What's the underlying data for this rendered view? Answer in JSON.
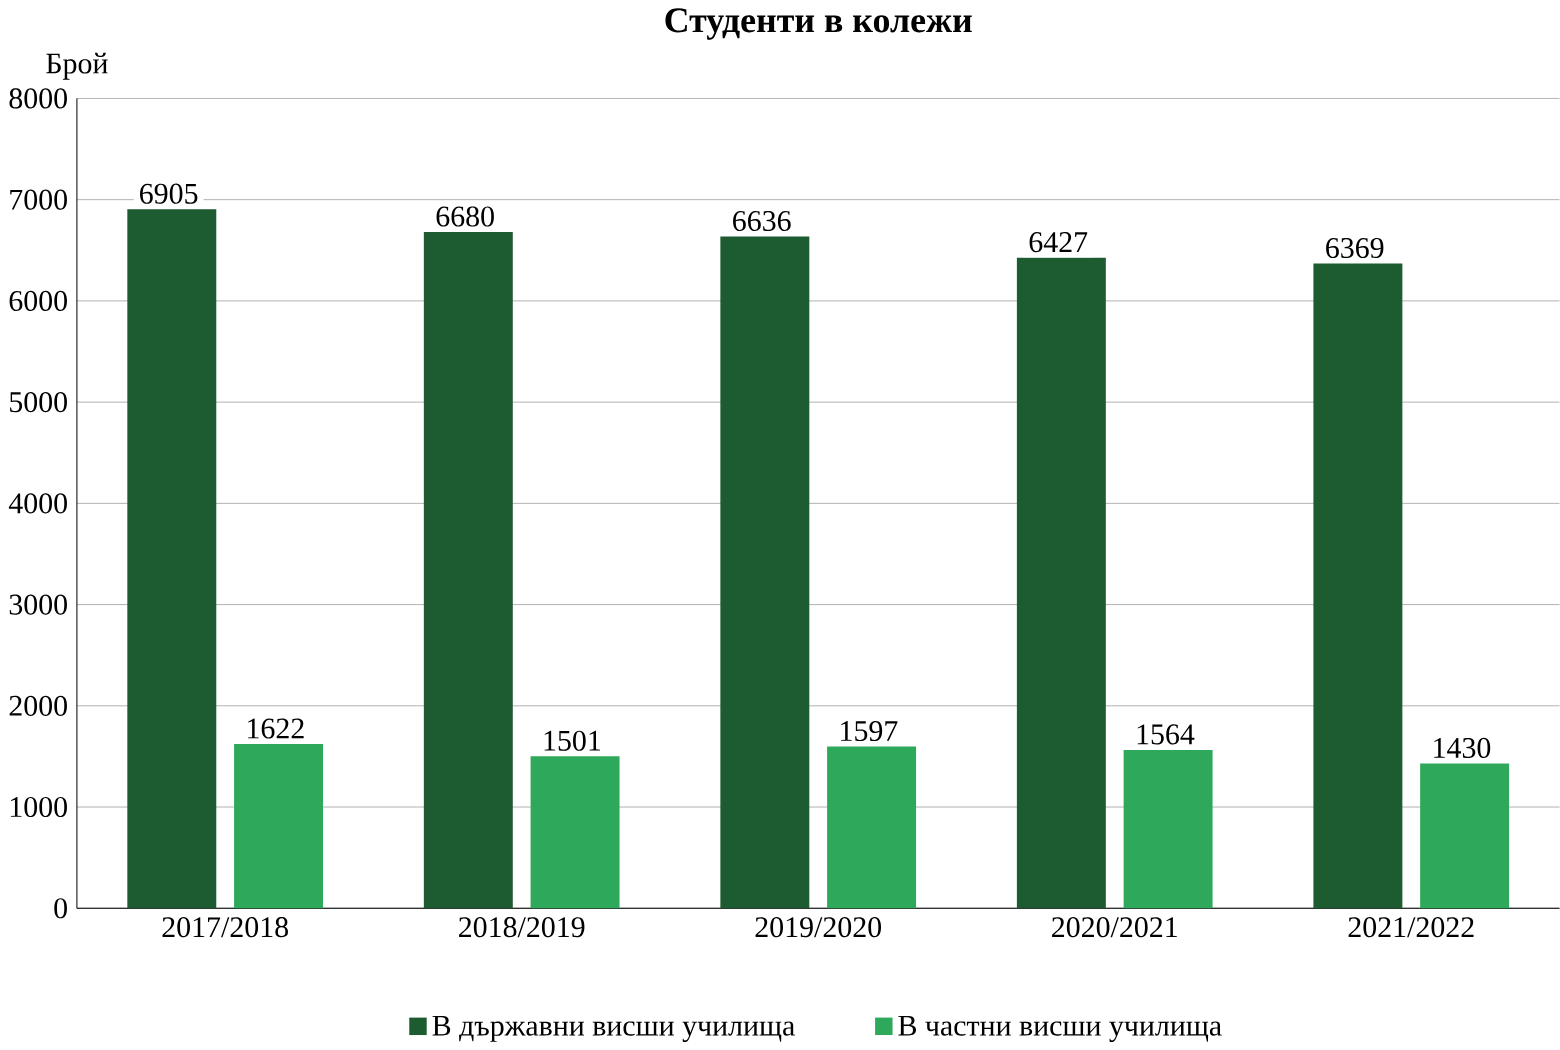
{
  "chart_data": {
    "type": "bar",
    "title": "Студенти в колежи",
    "ylabel": "Брой",
    "categories": [
      "2017/2018",
      "2018/2019",
      "2019/2020",
      "2020/2021",
      "2021/2022"
    ],
    "series": [
      {
        "name": "В държавни висши училища",
        "color": "#1d5c30",
        "values": [
          6905,
          6680,
          6636,
          6427,
          6369
        ]
      },
      {
        "name": "В частни висши училища",
        "color": "#2ea85a",
        "values": [
          1622,
          1501,
          1597,
          1564,
          1430
        ]
      }
    ],
    "ylim": [
      0,
      8000
    ],
    "yticks": [
      0,
      1000,
      2000,
      3000,
      4000,
      5000,
      6000,
      7000,
      8000
    ],
    "grid": "y",
    "legend": "bottom",
    "data_labels": true
  }
}
